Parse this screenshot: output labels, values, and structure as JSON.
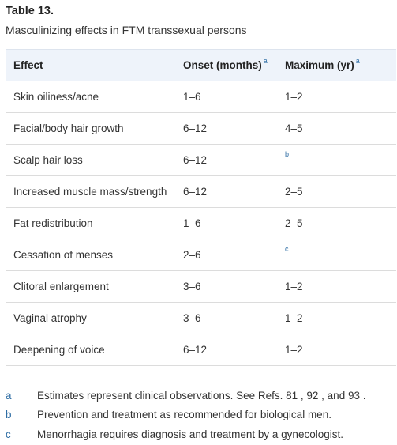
{
  "title": "Table 13.",
  "subtitle": "Masculinizing effects in FTM transsexual persons",
  "headers": {
    "effect": "Effect",
    "onset": "Onset (months)",
    "onset_ref": "a",
    "maximum": "Maximum (yr)",
    "maximum_ref": "a"
  },
  "rows": [
    {
      "effect": "Skin oiliness/acne",
      "onset": "1–6",
      "maximum": "1–2",
      "maximum_ref": ""
    },
    {
      "effect": "Facial/body hair growth",
      "onset": "6–12",
      "maximum": "4–5",
      "maximum_ref": ""
    },
    {
      "effect": "Scalp hair loss",
      "onset": "6–12",
      "maximum": "",
      "maximum_ref": "b"
    },
    {
      "effect": "Increased muscle mass/strength",
      "onset": "6–12",
      "maximum": "2–5",
      "maximum_ref": ""
    },
    {
      "effect": "Fat redistribution",
      "onset": "1–6",
      "maximum": "2–5",
      "maximum_ref": ""
    },
    {
      "effect": "Cessation of menses",
      "onset": "2–6",
      "maximum": "",
      "maximum_ref": "c"
    },
    {
      "effect": "Clitoral enlargement",
      "onset": "3–6",
      "maximum": "1–2",
      "maximum_ref": ""
    },
    {
      "effect": "Vaginal atrophy",
      "onset": "3–6",
      "maximum": "1–2",
      "maximum_ref": ""
    },
    {
      "effect": "Deepening of voice",
      "onset": "6–12",
      "maximum": "1–2",
      "maximum_ref": ""
    }
  ],
  "footnotes": [
    {
      "label": "a",
      "text": "Estimates represent clinical observations. See Refs. 81 , 92 , and 93 ."
    },
    {
      "label": "b",
      "text": "Prevention and treatment as recommended for biological men."
    },
    {
      "label": "c",
      "text": "Menorrhagia requires diagnosis and treatment by a gynecologist."
    }
  ],
  "colors": {
    "header_bg": "#eef3fa",
    "ref_link": "#2e6da4",
    "text": "#333333"
  }
}
